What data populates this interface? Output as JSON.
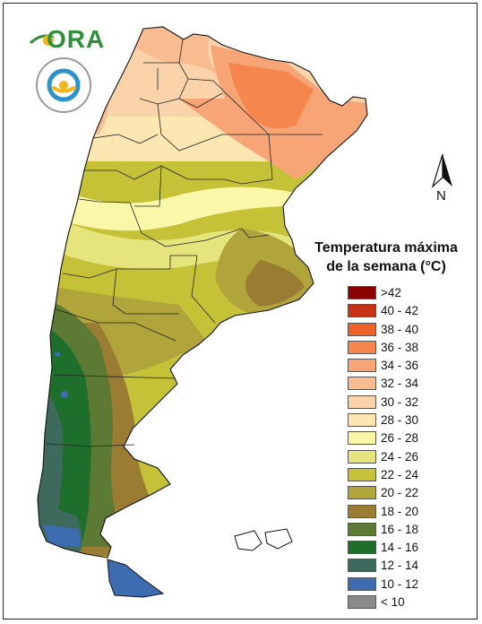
{
  "logo": {
    "text": "ORA"
  },
  "north_arrow": {
    "label": "N"
  },
  "legend": {
    "title_line1": "Temperatura máxima",
    "title_line2": "de la semana (°C)",
    "items": [
      {
        "label": ">42",
        "color": "#8b0000"
      },
      {
        "label": "40 - 42",
        "color": "#c83318"
      },
      {
        "label": "38 - 40",
        "color": "#f0622a"
      },
      {
        "label": "36 - 38",
        "color": "#f5874e"
      },
      {
        "label": "34 - 36",
        "color": "#f7a577"
      },
      {
        "label": "32 - 34",
        "color": "#f9bc90"
      },
      {
        "label": "30 - 32",
        "color": "#fbd3aa"
      },
      {
        "label": "28 - 30",
        "color": "#fde6b2"
      },
      {
        "label": "26 - 28",
        "color": "#fbf7a8"
      },
      {
        "label": "24 - 26",
        "color": "#e6e47c"
      },
      {
        "label": "22 - 24",
        "color": "#c6c238"
      },
      {
        "label": "20 - 22",
        "color": "#b0a43a"
      },
      {
        "label": "18 - 20",
        "color": "#9a7d32"
      },
      {
        "label": "16 - 18",
        "color": "#5d7a34"
      },
      {
        "label": "14 - 16",
        "color": "#1f6f2c"
      },
      {
        "label": "12 - 14",
        "color": "#3e6a5e"
      },
      {
        "label": "10 - 12",
        "color": "#3d6db0"
      },
      {
        "label": "< 10",
        "color": "#8a8a8a"
      }
    ]
  }
}
